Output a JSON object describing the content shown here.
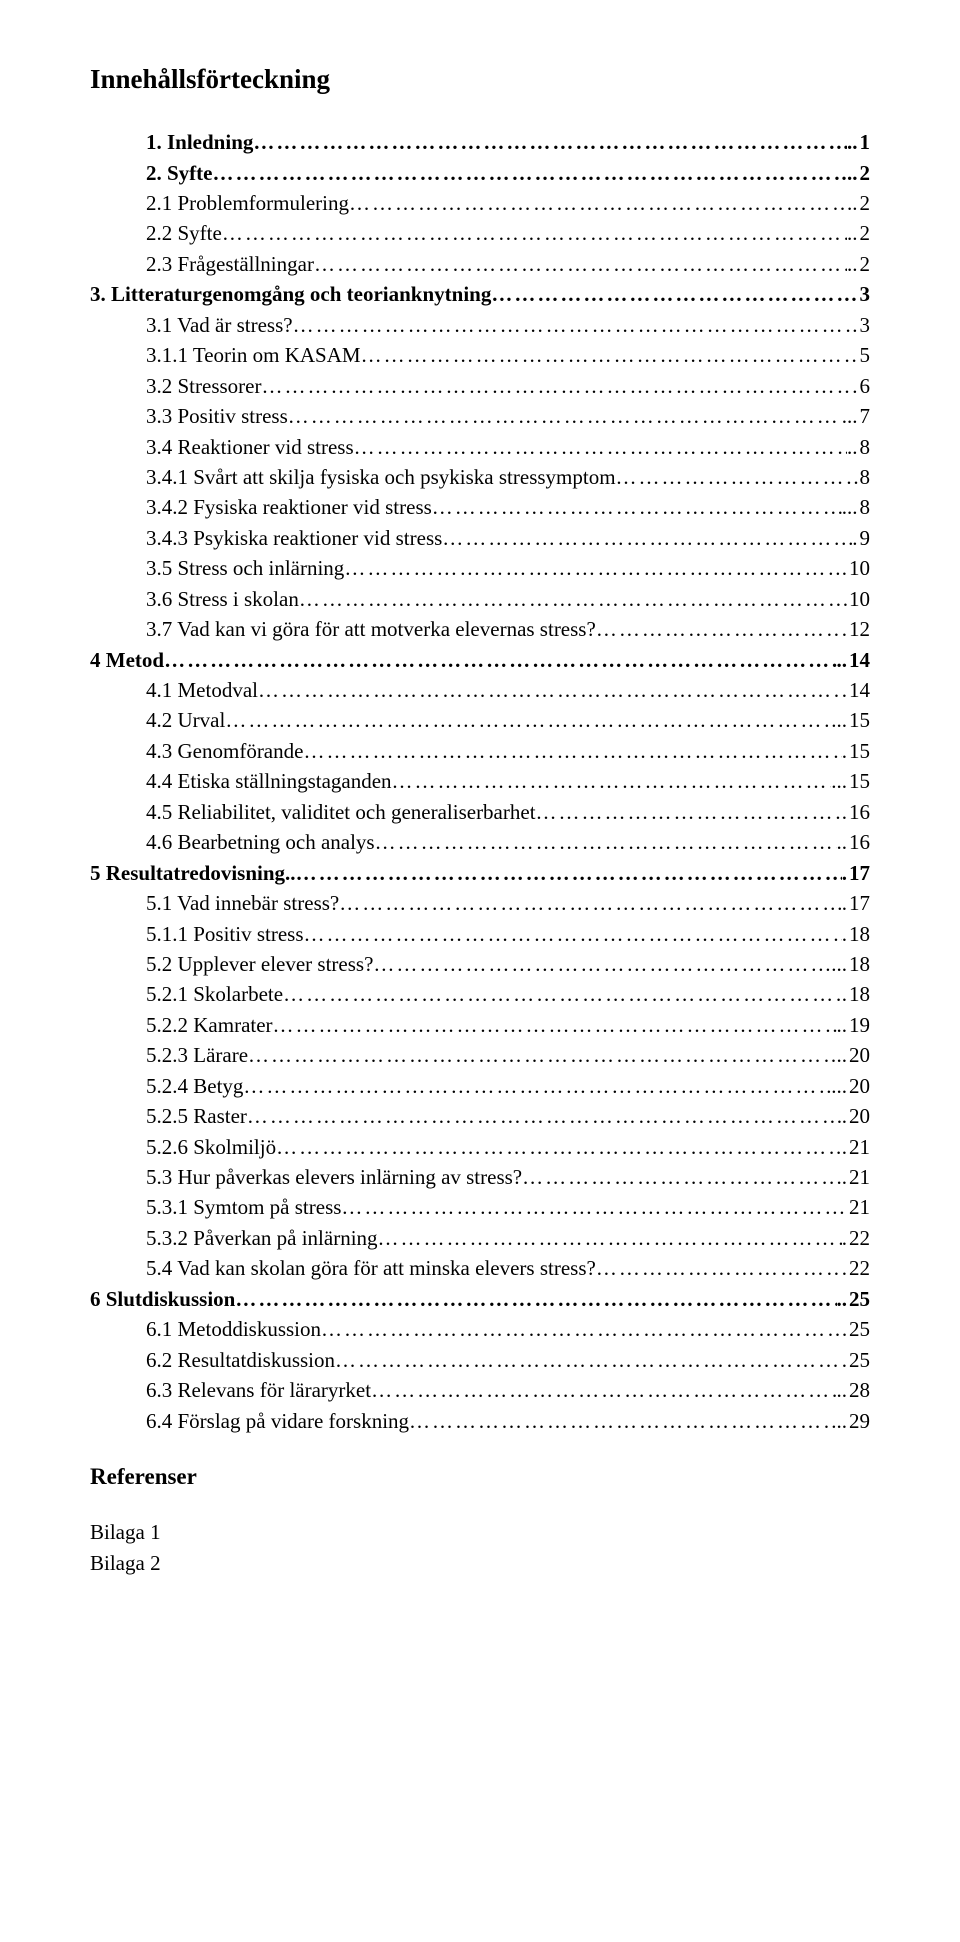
{
  "title": "Innehållsförteckning",
  "entries": [
    {
      "label": "1. Inledning",
      "page": "1",
      "indent": 1,
      "bold": true,
      "leader": ".."
    },
    {
      "label": "2. Syfte",
      "page": "2",
      "indent": 1,
      "bold": true,
      "leader": ".."
    },
    {
      "label": "2.1 Problemformulering",
      "page": "2",
      "indent": 1,
      "bold": false,
      "leader": ".."
    },
    {
      "label": "2.2 Syfte",
      "page": "2",
      "indent": 1,
      "bold": false,
      "leader": ".."
    },
    {
      "label": "2.3 Frågeställningar",
      "page": "2",
      "indent": 1,
      "bold": false,
      "leader": ".."
    },
    {
      "label": "3. Litteraturgenomgång och teorianknytning",
      "page": "3",
      "indent": 0,
      "bold": true,
      "leader": ""
    },
    {
      "label": "3.1 Vad är stress?",
      "page": "3",
      "indent": 1,
      "bold": false,
      "leader": "."
    },
    {
      "label": "3.1.1 Teorin om KASAM",
      "page": "5",
      "indent": 1,
      "bold": false,
      "leader": ""
    },
    {
      "label": "3.2 Stressorer",
      "page": "6",
      "indent": 1,
      "bold": false,
      "leader": "."
    },
    {
      "label": "3.3 Positiv stress",
      "page": "7",
      "indent": 1,
      "bold": false,
      "leader": "..."
    },
    {
      "label": "3.4 Reaktioner vid stress",
      "page": "8",
      "indent": 1,
      "bold": false,
      "leader": ".."
    },
    {
      "label": "3.4.1 Svårt att skilja fysiska och psykiska stressymptom",
      "page": "8",
      "indent": 1,
      "bold": false,
      "leader": ""
    },
    {
      "label": "3.4.2 Fysiska reaktioner vid stress",
      "page": "8",
      "indent": 1,
      "bold": false,
      "leader": "..."
    },
    {
      "label": "3.4.3 Psykiska reaktioner vid stress",
      "page": "9",
      "indent": 1,
      "bold": false,
      "leader": "."
    },
    {
      "label": "3.5 Stress och inlärning",
      "page": "10",
      "indent": 1,
      "bold": false,
      "leader": "."
    },
    {
      "label": "3.6 Stress i skolan",
      "page": "10",
      "indent": 1,
      "bold": false,
      "leader": ""
    },
    {
      "label": "3.7 Vad kan vi göra för att motverka elevernas stress?",
      "page": "12",
      "indent": 1,
      "bold": false,
      "leader": "."
    },
    {
      "label": "4 Metod",
      "page": "14",
      "indent": 0,
      "bold": true,
      "leader": ".."
    },
    {
      "label": "4.1 Metodval",
      "page": "14",
      "indent": 1,
      "bold": false,
      "leader": "."
    },
    {
      "label": "4.2 Urval",
      "page": "15",
      "indent": 1,
      "bold": false,
      "leader": ".."
    },
    {
      "label": "4.3 Genomförande",
      "page": "15",
      "indent": 1,
      "bold": false,
      "leader": "."
    },
    {
      "label": "4.4 Etiska ställningstaganden",
      "page": "15",
      "indent": 1,
      "bold": false,
      "leader": "..."
    },
    {
      "label": "4.5 Reliabilitet, validitet och generaliserbarhet",
      "page": "16",
      "indent": 1,
      "bold": false,
      "leader": "."
    },
    {
      "label": "4.6 Bearbetning och analys",
      "page": "16",
      "indent": 1,
      "bold": false,
      "leader": ".."
    },
    {
      "label": "5 Resultatredovisning..",
      "page": "17",
      "indent": 0,
      "bold": true,
      "leader": "."
    },
    {
      "label": "5.1 Vad innebär stress?",
      "page": "17",
      "indent": 1,
      "bold": false,
      "leader": "."
    },
    {
      "label": "5.1.1 Positiv stress",
      "page": "18",
      "indent": 1,
      "bold": false,
      "leader": "."
    },
    {
      "label": "5.2 Upplever elever stress?",
      "page": "18",
      "indent": 1,
      "bold": false,
      "leader": "..."
    },
    {
      "label": "5.2.1 Skolarbete",
      "page": "18",
      "indent": 1,
      "bold": false,
      "leader": "."
    },
    {
      "label": "5.2.2 Kamrater",
      "page": "19",
      "indent": 1,
      "bold": false,
      "leader": ".."
    },
    {
      "label": "5.2.3 Lärare",
      "page": "20",
      "indent": 1,
      "bold": false,
      "leader": ".."
    },
    {
      "label": "5.2.4 Betyg",
      "page": "20",
      "indent": 1,
      "bold": false,
      "leader": "..."
    },
    {
      "label": "5.2.5 Raster",
      "page": "20",
      "indent": 1,
      "bold": false,
      "leader": "."
    },
    {
      "label": "5.2.6 Skolmiljö",
      "page": "21",
      "indent": 1,
      "bold": false,
      "leader": "."
    },
    {
      "label": "5.3 Hur påverkas elevers inlärning av stress?",
      "page": "21",
      "indent": 1,
      "bold": false,
      "leader": ".."
    },
    {
      "label": "5.3.1 Symtom på stress",
      "page": "21",
      "indent": 1,
      "bold": false,
      "leader": ""
    },
    {
      "label": "5.3.2 Påverkan på inlärning",
      "page": "22",
      "indent": 1,
      "bold": false,
      "leader": "."
    },
    {
      "label": "5.4 Vad kan skolan göra för att minska elevers stress?",
      "page": "22",
      "indent": 1,
      "bold": false,
      "leader": "."
    },
    {
      "label": "6 Slutdiskussion",
      "page": "25",
      "indent": 0,
      "bold": true,
      "leader": ".."
    },
    {
      "label": "6.1 Metoddiskussion",
      "page": "25",
      "indent": 1,
      "bold": false,
      "leader": ""
    },
    {
      "label": "6.2 Resultatdiskussion",
      "page": "25",
      "indent": 1,
      "bold": false,
      "leader": "."
    },
    {
      "label": "6.3 Relevans för läraryrket",
      "page": "28",
      "indent": 1,
      "bold": false,
      "leader": ".."
    },
    {
      "label": "6.4 Förslag på vidare forskning",
      "page": "29",
      "indent": 1,
      "bold": false,
      "leader": "..."
    }
  ],
  "references_heading": "Referenser",
  "appendices": [
    "Bilaga 1",
    "Bilaga 2"
  ]
}
